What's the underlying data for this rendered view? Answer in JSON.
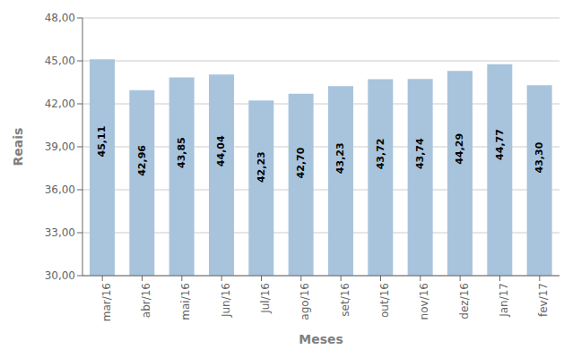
{
  "chart_data": {
    "type": "bar",
    "categories": [
      "mar/16",
      "abr/16",
      "mai/16",
      "Jun/16",
      "Jul/16",
      "ago/16",
      "set/16",
      "out/16",
      "nov/16",
      "dez/16",
      "Jan/17",
      "fev/17"
    ],
    "values": [
      45.11,
      42.96,
      43.85,
      44.04,
      42.23,
      42.7,
      43.23,
      43.72,
      43.74,
      44.29,
      44.77,
      43.3
    ],
    "value_labels": [
      "45,11",
      "42,96",
      "43,85",
      "44,04",
      "42,23",
      "42,70",
      "43,23",
      "43,72",
      "43,74",
      "44,29",
      "44,77",
      "43,30"
    ],
    "data_labels": true,
    "color": "#a8c4dc",
    "xlabel": "Meses",
    "ylabel": "Reais",
    "ylim": [
      30.0,
      48.0
    ],
    "yticks": [
      {
        "value": 30.0,
        "label": "30,00"
      },
      {
        "value": 33.0,
        "label": "33,00"
      },
      {
        "value": 36.0,
        "label": "36,00"
      },
      {
        "value": 39.0,
        "label": "39,00"
      },
      {
        "value": 42.0,
        "label": "42,00"
      },
      {
        "value": 45.0,
        "label": "45,00"
      },
      {
        "value": 48.0,
        "label": "48,00"
      }
    ],
    "grid": true
  }
}
